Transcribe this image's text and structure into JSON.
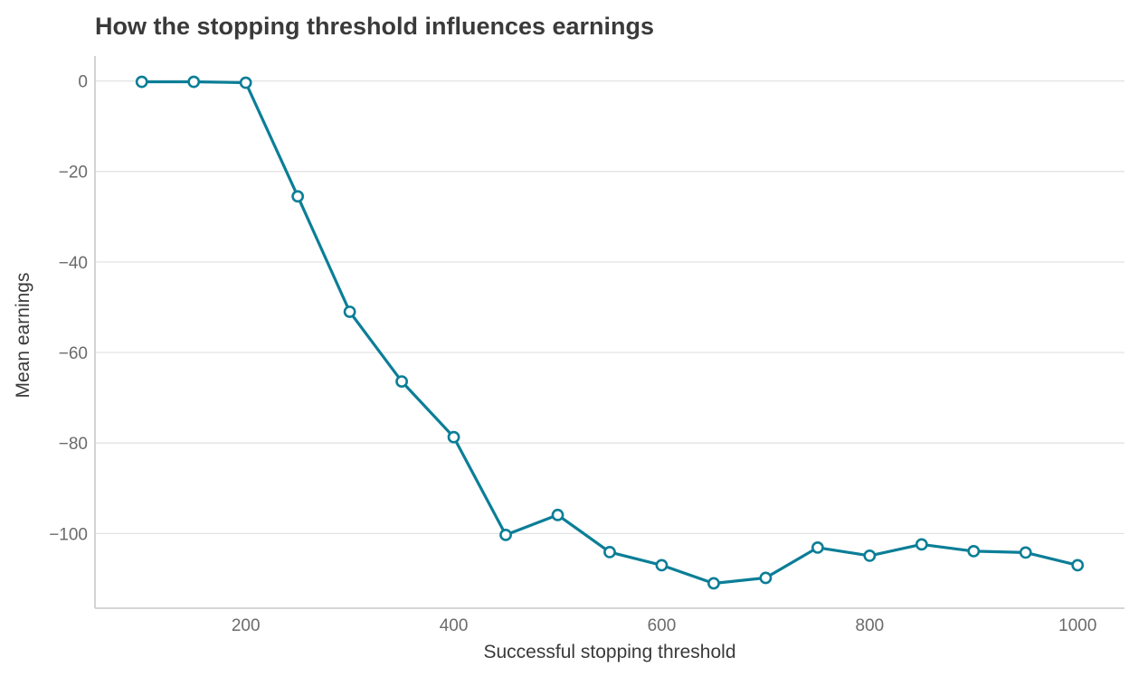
{
  "chart_data": {
    "type": "line",
    "title": "How the stopping threshold influences earnings",
    "xlabel": "Successful stopping threshold",
    "ylabel": "Mean earnings",
    "xlim": [
      55,
      1045
    ],
    "ylim": [
      -116.5,
      5.5
    ],
    "xticks": [
      200,
      400,
      600,
      800,
      1000
    ],
    "xtick_labels": [
      "200",
      "400",
      "600",
      "800",
      "1000"
    ],
    "yticks": [
      0,
      -20,
      -40,
      -60,
      -80,
      -100
    ],
    "ytick_labels": [
      "0",
      "−20",
      "−40",
      "−60",
      "−80",
      "−100"
    ],
    "grid": "horizontal",
    "legend": "none",
    "series": [
      {
        "color": "#0b7e97",
        "x": [
          100,
          150,
          200,
          250,
          300,
          350,
          400,
          450,
          500,
          550,
          600,
          650,
          700,
          750,
          800,
          850,
          900,
          950,
          1000
        ],
        "y": [
          -0.2,
          -0.2,
          -0.4,
          -25.5,
          -51.0,
          -66.4,
          -78.7,
          -100.3,
          -95.9,
          -104.1,
          -107.0,
          -111.0,
          -109.8,
          -103.1,
          -104.9,
          -102.4,
          -103.9,
          -104.2,
          -107.0
        ]
      }
    ]
  }
}
